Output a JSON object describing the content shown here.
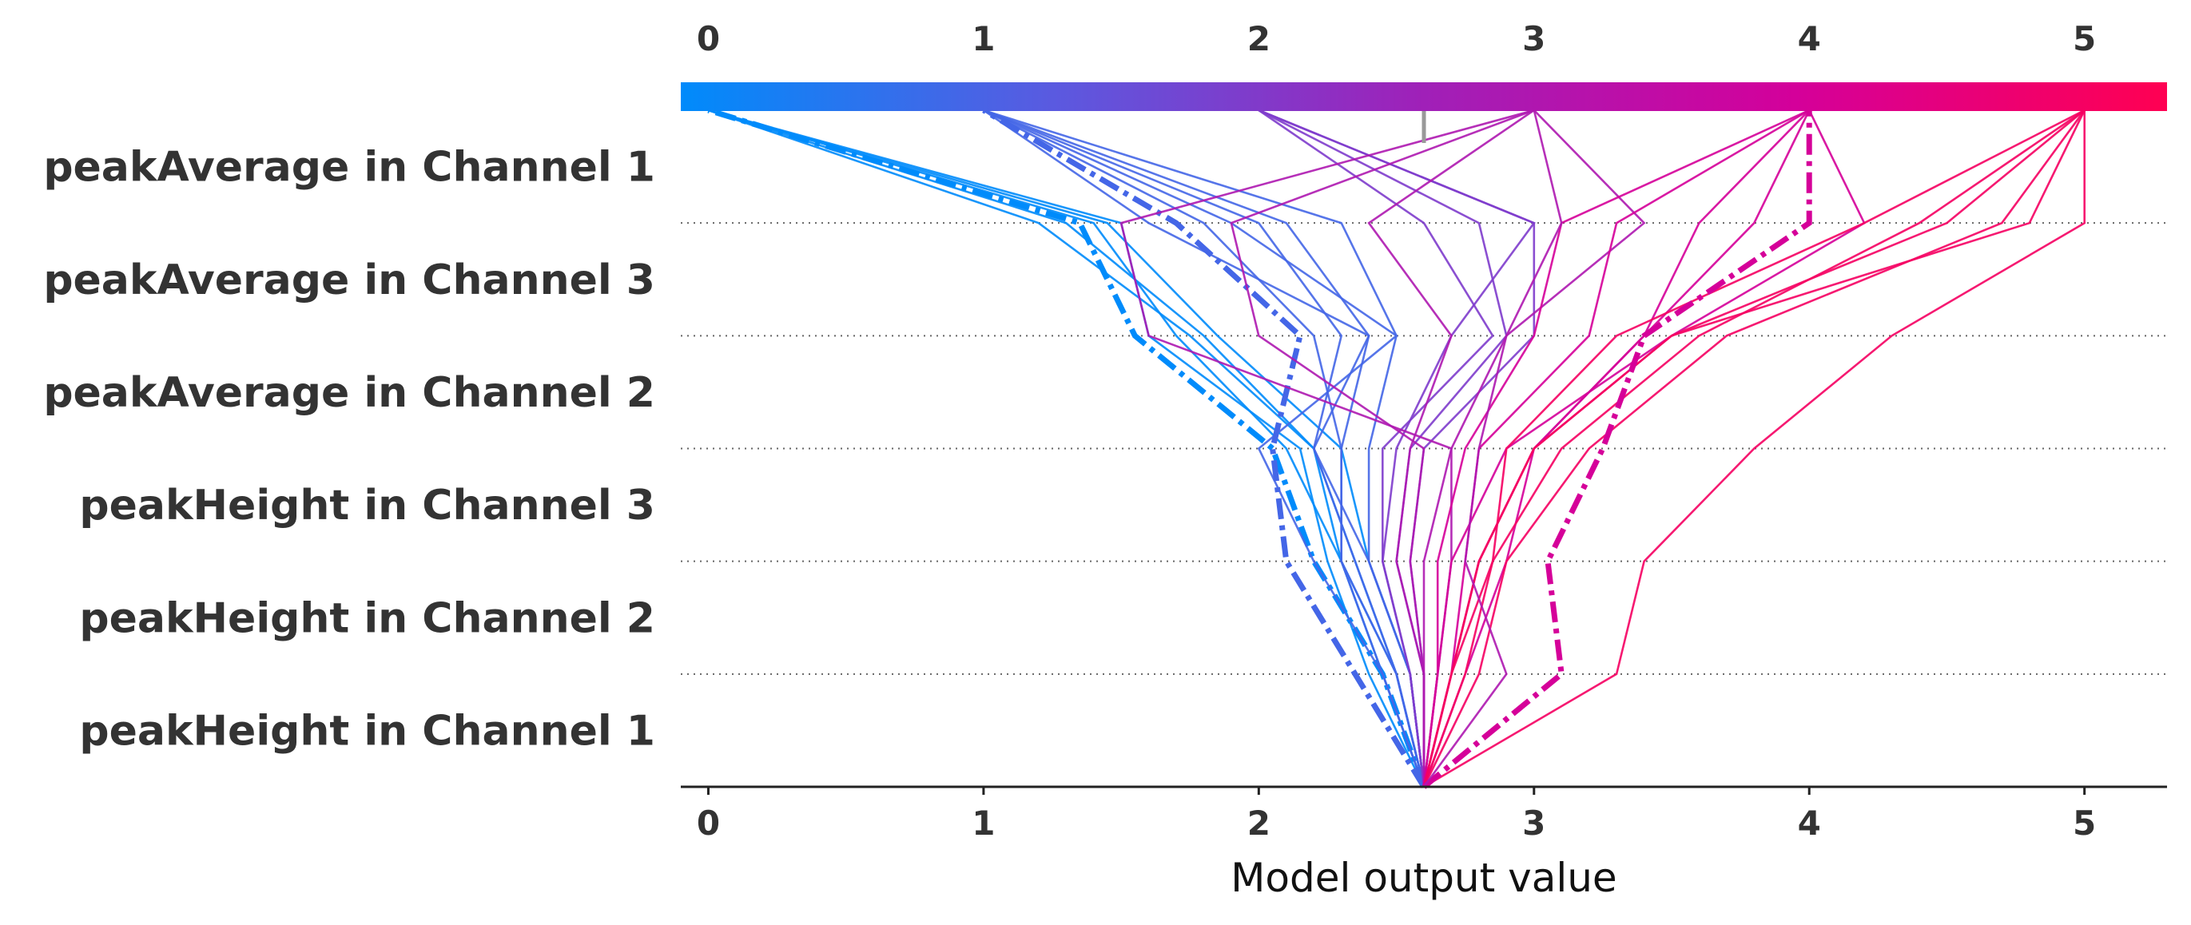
{
  "chart_data": {
    "type": "line",
    "plot_kind": "SHAP decision plot",
    "title": "",
    "xlabel": "Model output value",
    "ylabel": "",
    "xlim": [
      -0.1,
      5.3
    ],
    "x_ticks": [
      0,
      1,
      2,
      3,
      4,
      5
    ],
    "x_tick_labels": [
      "0",
      "1",
      "2",
      "3",
      "4",
      "5"
    ],
    "base_value": 2.6,
    "features": [
      "peakHeight in Channel 1",
      "peakHeight in Channel 2",
      "peakHeight in Channel 3",
      "peakAverage in Channel 2",
      "peakAverage in Channel 3",
      "peakAverage in Channel 1"
    ],
    "colorbar": {
      "min": 0,
      "max": 5.3,
      "colors": [
        "#008bfb",
        "#5a5ae0",
        "#a020b8",
        "#d4009a",
        "#ff0052"
      ]
    },
    "grid": true,
    "series_note": "cumulative model output after each feature, listed from bottom (base value) to top (final prediction)",
    "series": [
      {
        "x": [
          2.6,
          2.5,
          2.3,
          2.2,
          1.8,
          1.3,
          0.0
        ],
        "dashed": false
      },
      {
        "x": [
          2.6,
          2.45,
          2.3,
          2.1,
          1.7,
          1.4,
          0.0
        ],
        "dashed": false
      },
      {
        "x": [
          2.6,
          2.4,
          2.25,
          2.15,
          1.6,
          1.5,
          0.0
        ],
        "dashed": false
      },
      {
        "x": [
          2.6,
          2.5,
          2.35,
          2.2,
          1.75,
          1.2,
          0.0
        ],
        "dashed": false
      },
      {
        "x": [
          2.6,
          2.55,
          2.4,
          2.3,
          1.85,
          1.45,
          0.0
        ],
        "dashed": false
      },
      {
        "x": [
          2.6,
          2.45,
          2.2,
          2.05,
          1.55,
          1.35,
          0.0
        ],
        "dashed": true
      },
      {
        "x": [
          2.6,
          2.45,
          2.2,
          2.0,
          2.5,
          1.9,
          1.0
        ],
        "dashed": false
      },
      {
        "x": [
          2.6,
          2.5,
          2.35,
          2.2,
          2.3,
          2.0,
          1.0
        ],
        "dashed": false
      },
      {
        "x": [
          2.6,
          2.5,
          2.3,
          2.3,
          2.2,
          1.8,
          1.0
        ],
        "dashed": false
      },
      {
        "x": [
          2.6,
          2.55,
          2.4,
          2.2,
          2.4,
          2.1,
          1.0
        ],
        "dashed": false
      },
      {
        "x": [
          2.6,
          2.35,
          2.1,
          2.05,
          2.15,
          1.7,
          1.0
        ],
        "dashed": true
      },
      {
        "x": [
          2.6,
          2.45,
          2.3,
          2.3,
          2.4,
          1.6,
          1.0
        ],
        "dashed": false
      },
      {
        "x": [
          2.6,
          2.55,
          2.4,
          2.4,
          2.5,
          2.3,
          1.0
        ],
        "dashed": false
      },
      {
        "x": [
          2.6,
          2.55,
          2.45,
          2.5,
          2.7,
          3.0,
          2.0
        ],
        "dashed": false
      },
      {
        "x": [
          2.6,
          2.6,
          2.5,
          2.55,
          2.9,
          2.8,
          2.0
        ],
        "dashed": false
      },
      {
        "x": [
          2.6,
          2.6,
          2.55,
          2.6,
          3.0,
          3.0,
          2.0
        ],
        "dashed": false
      },
      {
        "x": [
          2.6,
          2.55,
          2.45,
          2.45,
          2.85,
          2.6,
          2.0
        ],
        "dashed": false
      },
      {
        "x": [
          2.6,
          2.6,
          2.5,
          2.55,
          2.7,
          2.4,
          3.0
        ],
        "dashed": false
      },
      {
        "x": [
          2.6,
          2.6,
          2.6,
          2.7,
          1.6,
          1.5,
          3.0
        ],
        "dashed": false
      },
      {
        "x": [
          2.6,
          2.6,
          2.55,
          2.6,
          2.0,
          1.9,
          3.0
        ],
        "dashed": false
      },
      {
        "x": [
          2.6,
          2.65,
          2.7,
          2.7,
          2.9,
          3.4,
          3.0
        ],
        "dashed": false
      },
      {
        "x": [
          2.6,
          2.65,
          2.65,
          2.75,
          3.0,
          3.1,
          4.0
        ],
        "dashed": false
      },
      {
        "x": [
          2.6,
          2.7,
          2.75,
          2.8,
          3.2,
          3.3,
          4.0
        ],
        "dashed": false
      },
      {
        "x": [
          2.6,
          2.65,
          2.7,
          2.9,
          3.5,
          4.2,
          4.0
        ],
        "dashed": false
      },
      {
        "x": [
          2.6,
          2.7,
          2.8,
          3.0,
          3.4,
          3.8,
          4.0
        ],
        "dashed": false
      },
      {
        "x": [
          2.6,
          2.75,
          2.9,
          3.0,
          3.4,
          3.6,
          4.0
        ],
        "dashed": false
      },
      {
        "x": [
          2.6,
          2.7,
          2.85,
          2.9,
          3.3,
          4.2,
          5.0
        ],
        "dashed": false
      },
      {
        "x": [
          2.6,
          2.7,
          2.8,
          3.0,
          3.5,
          4.5,
          5.0
        ],
        "dashed": false
      },
      {
        "x": [
          2.6,
          2.75,
          2.85,
          3.1,
          3.6,
          4.4,
          5.0
        ],
        "dashed": false
      },
      {
        "x": [
          2.6,
          2.8,
          2.9,
          3.2,
          3.7,
          4.7,
          5.0
        ],
        "dashed": false
      },
      {
        "x": [
          2.6,
          2.7,
          2.8,
          3.0,
          3.5,
          4.8,
          5.0
        ],
        "dashed": false
      },
      {
        "x": [
          2.6,
          3.3,
          3.4,
          3.8,
          4.3,
          5.0,
          5.0
        ],
        "dashed": false
      },
      {
        "x": [
          2.6,
          3.1,
          3.05,
          3.25,
          3.4,
          4.0,
          4.0
        ],
        "dashed": true
      },
      {
        "x": [
          2.6,
          2.9,
          2.75,
          2.8,
          2.9,
          3.1,
          3.0
        ],
        "dashed": false
      }
    ]
  }
}
